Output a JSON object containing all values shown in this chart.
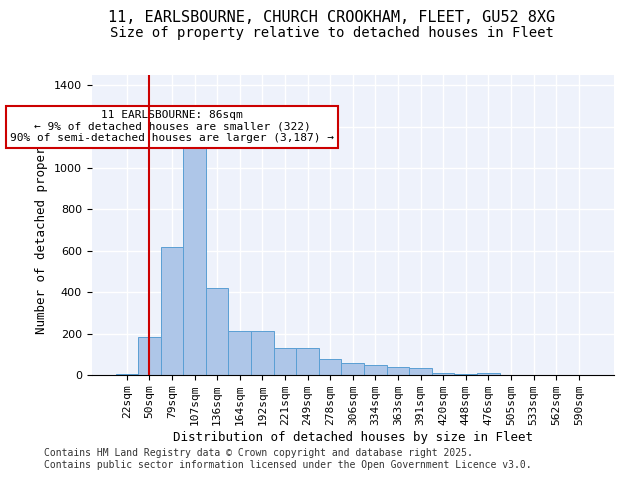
{
  "title_line1": "11, EARLSBOURNE, CHURCH CROOKHAM, FLEET, GU52 8XG",
  "title_line2": "Size of property relative to detached houses in Fleet",
  "xlabel": "Distribution of detached houses by size in Fleet",
  "ylabel": "Number of detached properties",
  "categories": [
    "22sqm",
    "50sqm",
    "79sqm",
    "107sqm",
    "136sqm",
    "164sqm",
    "192sqm",
    "221sqm",
    "249sqm",
    "278sqm",
    "306sqm",
    "334sqm",
    "363sqm",
    "391sqm",
    "420sqm",
    "448sqm",
    "476sqm",
    "505sqm",
    "533sqm",
    "562sqm",
    "590sqm"
  ],
  "values": [
    5,
    185,
    620,
    1110,
    420,
    215,
    215,
    130,
    130,
    75,
    60,
    50,
    40,
    35,
    10,
    5,
    10,
    2,
    2,
    2,
    2
  ],
  "bar_color": "#aec6e8",
  "bar_edge_color": "#5a9fd4",
  "background_color": "#eef2fb",
  "grid_color": "#ffffff",
  "annotation_text": "11 EARLSBOURNE: 86sqm\n← 9% of detached houses are smaller (322)\n90% of semi-detached houses are larger (3,187) →",
  "annotation_box_color": "#ffffff",
  "annotation_box_edge": "#cc0000",
  "vline_x": 1,
  "vline_color": "#cc0000",
  "ylim": [
    0,
    1450
  ],
  "yticks": [
    0,
    200,
    400,
    600,
    800,
    1000,
    1200,
    1400
  ],
  "footnote": "Contains HM Land Registry data © Crown copyright and database right 2025.\nContains public sector information licensed under the Open Government Licence v3.0.",
  "title_fontsize": 11,
  "subtitle_fontsize": 10,
  "label_fontsize": 9,
  "tick_fontsize": 8,
  "footnote_fontsize": 7
}
